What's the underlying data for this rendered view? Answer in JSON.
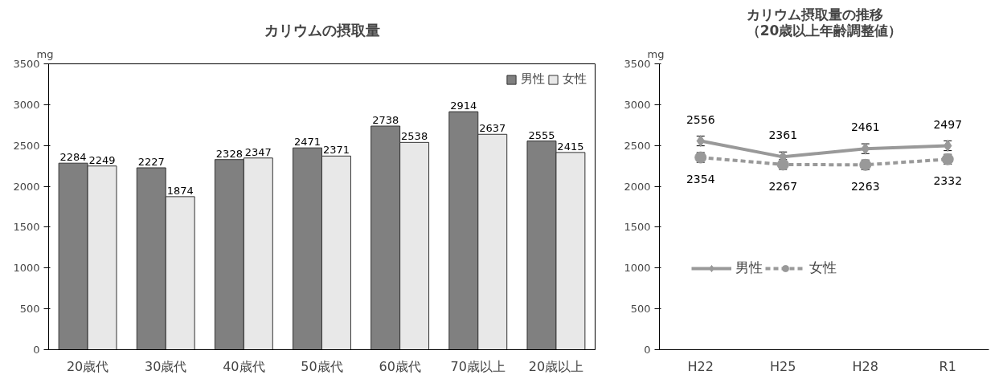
{
  "chart_data": [
    {
      "type": "bar",
      "title": "カリウムの摂取量",
      "ylabel": "mg",
      "categories": [
        "20歳代",
        "30歳代",
        "40歳代",
        "50歳代",
        "60歳代",
        "70歳以上",
        "20歳以上"
      ],
      "series": [
        {
          "name": "男性",
          "color": "#808080",
          "values": [
            2284,
            2227,
            2328,
            2471,
            2738,
            2914,
            2555
          ]
        },
        {
          "name": "女性",
          "color": "#e8e8e8",
          "values": [
            2249,
            1874,
            2347,
            2371,
            2538,
            2637,
            2415
          ]
        }
      ],
      "ylim": [
        0,
        3500
      ],
      "yticks": [
        0,
        500,
        1000,
        1500,
        2000,
        2500,
        3000,
        3500
      ],
      "grid": false,
      "legend": "top right",
      "data_labels": true
    },
    {
      "type": "line",
      "title": "カリウム摂取量の推移（20歳以上年齢調整値）",
      "ylabel": "mg",
      "categories": [
        "H22",
        "H25",
        "H28",
        "R1"
      ],
      "series": [
        {
          "name": "男性",
          "color": "#999999",
          "marker": "diamond",
          "line_style": "solid",
          "values": [
            2556,
            2361,
            2461,
            2497
          ],
          "errors": [
            60,
            60,
            60,
            60
          ]
        },
        {
          "name": "女性",
          "color": "#999999",
          "marker": "circle",
          "line_style": "dashed",
          "values": [
            2354,
            2267,
            2263,
            2332
          ],
          "errors": [
            60,
            60,
            60,
            60
          ]
        }
      ],
      "ylim": [
        0,
        3500
      ],
      "yticks": [
        0,
        500,
        1000,
        1500,
        2000,
        2500,
        3000,
        3500
      ],
      "grid": false,
      "legend": "bottom",
      "data_labels": true
    }
  ]
}
